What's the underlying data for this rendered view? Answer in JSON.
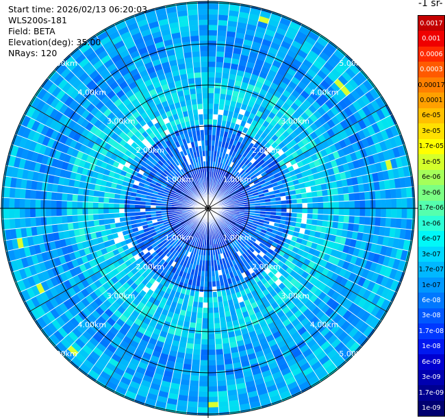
{
  "header": {
    "start_time": "Start time: 2026/02/13 06:20:03",
    "instrument": "WLS200s-181",
    "field": "Field: BETA",
    "elevation": "Elevation(deg): 35.00",
    "nrays": "NRays: 120"
  },
  "chart_data": {
    "type": "heatmap",
    "projection": "polar (PPI scan)",
    "nrays": 120,
    "range_rings": [
      {
        "label": "1.00km",
        "value": 1
      },
      {
        "label": "2.00km",
        "value": 2
      },
      {
        "label": "3.00km",
        "value": 3
      },
      {
        "label": "4.00km",
        "value": 4
      },
      {
        "label": "5.00km",
        "value": 5
      }
    ],
    "max_range_km": 5.0,
    "spokes_deg": [
      0,
      30,
      60,
      90,
      120,
      150,
      180,
      210,
      240,
      270,
      300,
      330
    ],
    "colorbar": {
      "title": "-1 sr-",
      "scale": "log",
      "levels": [
        "0.0017",
        "0.001",
        "0.0006",
        "0.0003",
        "0.00017",
        "0.0001",
        "6e-05",
        "3e-05",
        "1.7e-05",
        "1e-05",
        "6e-06",
        "3e-06",
        "1.7e-06",
        "1e-06",
        "6e-07",
        "3e-07",
        "1.7e-07",
        "1e-07",
        "6e-08",
        "3e-08",
        "1.7e-08",
        "1e-08",
        "6e-09",
        "3e-09",
        "1.7e-09",
        "1e-09"
      ],
      "colors": [
        "#c40000",
        "#ef0000",
        "#ff2a00",
        "#ff5a00",
        "#ff8000",
        "#ffa000",
        "#ffc000",
        "#ffe000",
        "#ffff00",
        "#d4ff2b",
        "#a5ff5a",
        "#7bff84",
        "#55ffae",
        "#2cffd6",
        "#00f8f8",
        "#00d8ff",
        "#00b8ff",
        "#0098ff",
        "#0078ff",
        "#0058ff",
        "#0038ff",
        "#0018f0",
        "#0000d0",
        "#0000b0",
        "#000090",
        "#000070"
      ]
    },
    "field_description": "BETA backscatter values mostly 6e-08 to 6e-07 (blue-cyan); lowest near center (~1e-08); isolated peaks ~3e-06 to 1e-05 near 4.5 km"
  }
}
